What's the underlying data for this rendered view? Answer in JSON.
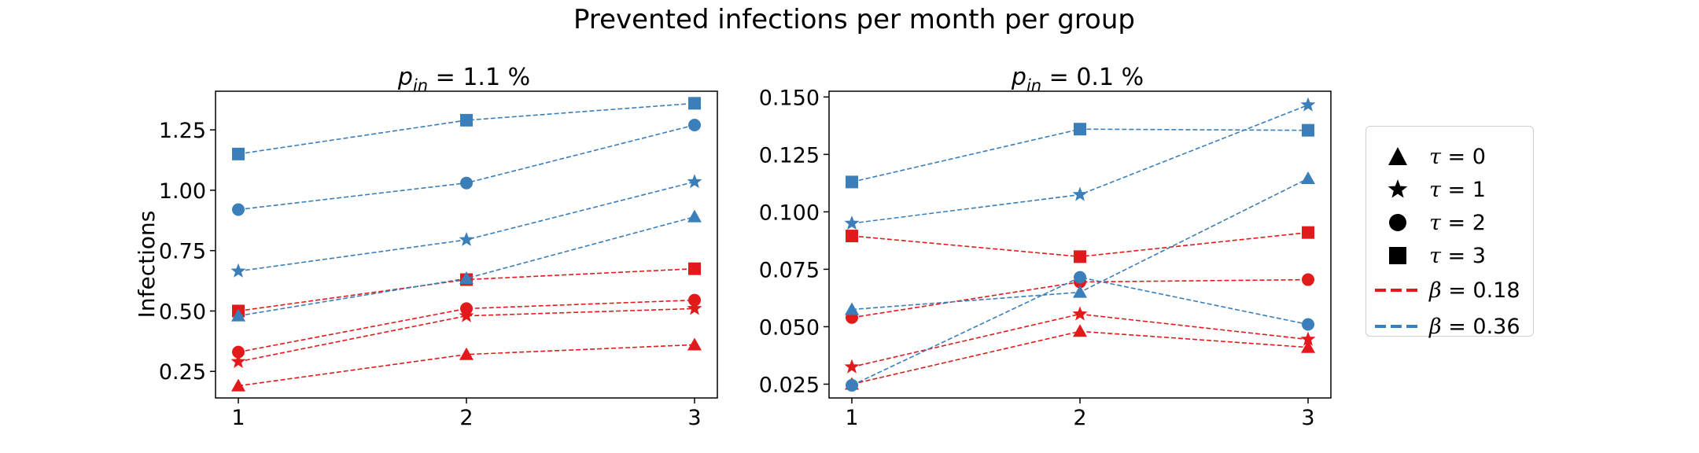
{
  "figure_title": "Prevented infections per month per group",
  "colors": {
    "beta_018": "#e31a1c",
    "beta_036": "#3a7fba"
  },
  "legend": {
    "markers": [
      {
        "symbol": "triangle",
        "param": "τ",
        "value": "0"
      },
      {
        "symbol": "star",
        "param": "τ",
        "value": "1"
      },
      {
        "symbol": "circle",
        "param": "τ",
        "value": "2"
      },
      {
        "symbol": "square",
        "param": "τ",
        "value": "3"
      }
    ],
    "lines": [
      {
        "param": "β",
        "value": "0.18",
        "color": "#e31a1c"
      },
      {
        "param": "β",
        "value": "0.36",
        "color": "#3a7fba"
      }
    ]
  },
  "chart_data": [
    {
      "type": "line",
      "title_main": "p",
      "title_sub": "in",
      "title_rest": " = 1.1 %",
      "ylabel": "Infections",
      "x": [
        1,
        2,
        3
      ],
      "xticks": [
        "1",
        "2",
        "3"
      ],
      "yticks": [
        "0.25",
        "0.50",
        "0.75",
        "1.00",
        "1.25"
      ],
      "ylim": [
        0.14,
        1.41
      ],
      "series": [
        {
          "tau": 0,
          "beta": 0.18,
          "marker": "triangle",
          "color": "#e31a1c",
          "values": [
            0.19,
            0.32,
            0.36
          ]
        },
        {
          "tau": 1,
          "beta": 0.18,
          "marker": "star",
          "color": "#e31a1c",
          "values": [
            0.29,
            0.48,
            0.51
          ]
        },
        {
          "tau": 2,
          "beta": 0.18,
          "marker": "circle",
          "color": "#e31a1c",
          "values": [
            0.33,
            0.51,
            0.545
          ]
        },
        {
          "tau": 3,
          "beta": 0.18,
          "marker": "square",
          "color": "#e31a1c",
          "values": [
            0.5,
            0.63,
            0.675
          ]
        },
        {
          "tau": 0,
          "beta": 0.36,
          "marker": "triangle",
          "color": "#3a7fba",
          "values": [
            0.48,
            0.635,
            0.89
          ]
        },
        {
          "tau": 1,
          "beta": 0.36,
          "marker": "star",
          "color": "#3a7fba",
          "values": [
            0.665,
            0.795,
            1.035
          ]
        },
        {
          "tau": 2,
          "beta": 0.36,
          "marker": "circle",
          "color": "#3a7fba",
          "values": [
            0.92,
            1.03,
            1.27
          ]
        },
        {
          "tau": 3,
          "beta": 0.36,
          "marker": "square",
          "color": "#3a7fba",
          "values": [
            1.15,
            1.29,
            1.36
          ]
        }
      ]
    },
    {
      "type": "line",
      "title_main": "p",
      "title_sub": "in",
      "title_rest": " = 0.1 %",
      "ylabel": "",
      "x": [
        1,
        2,
        3
      ],
      "xticks": [
        "1",
        "2",
        "3"
      ],
      "yticks": [
        "0.025",
        "0.050",
        "0.075",
        "0.100",
        "0.125",
        "0.150"
      ],
      "ylim": [
        0.019,
        0.1525
      ],
      "series": [
        {
          "tau": 0,
          "beta": 0.18,
          "marker": "triangle",
          "color": "#e31a1c",
          "values": [
            0.025,
            0.048,
            0.041
          ]
        },
        {
          "tau": 1,
          "beta": 0.18,
          "marker": "star",
          "color": "#e31a1c",
          "values": [
            0.0325,
            0.0555,
            0.0445
          ]
        },
        {
          "tau": 2,
          "beta": 0.18,
          "marker": "circle",
          "color": "#e31a1c",
          "values": [
            0.054,
            0.0695,
            0.0705
          ]
        },
        {
          "tau": 3,
          "beta": 0.18,
          "marker": "square",
          "color": "#e31a1c",
          "values": [
            0.0895,
            0.0805,
            0.091
          ]
        },
        {
          "tau": 0,
          "beta": 0.36,
          "marker": "triangle",
          "color": "#3a7fba",
          "values": [
            0.0575,
            0.065,
            0.1145
          ]
        },
        {
          "tau": 1,
          "beta": 0.36,
          "marker": "star",
          "color": "#3a7fba",
          "values": [
            0.095,
            0.1075,
            0.1465
          ]
        },
        {
          "tau": 2,
          "beta": 0.36,
          "marker": "circle",
          "color": "#3a7fba",
          "values": [
            0.0245,
            0.0715,
            0.051
          ]
        },
        {
          "tau": 3,
          "beta": 0.36,
          "marker": "square",
          "color": "#3a7fba",
          "values": [
            0.113,
            0.136,
            0.1355
          ]
        }
      ]
    }
  ]
}
